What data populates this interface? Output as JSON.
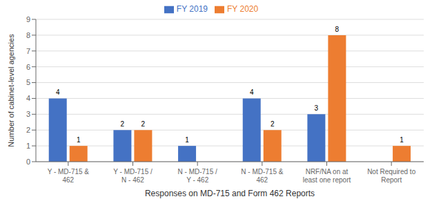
{
  "chart_data": {
    "type": "bar",
    "categories": [
      "Y - MD-715 &\n462",
      "Y - MD-715 /\nN - 462",
      "N - MD-715 /\nY - 462",
      "N - MD-715 &\n462",
      "NRF/NA on at\nleast one report",
      "Not Required to\nReport"
    ],
    "series": [
      {
        "name": "FY 2019",
        "color": "#4472C4",
        "values": [
          4,
          2,
          1,
          4,
          3,
          0
        ]
      },
      {
        "name": "FY 2020",
        "color": "#ED7D31",
        "values": [
          1,
          2,
          0,
          2,
          8,
          1
        ]
      }
    ],
    "xlabel": "Responses on MD-715 and Form 462 Reports",
    "ylabel": "Number of cabinet-level agencies",
    "ylim": [
      0,
      9
    ],
    "yticks": [
      0,
      1,
      2,
      3,
      4,
      5,
      6,
      7,
      8,
      9
    ],
    "grid": true,
    "legend": "top",
    "data_labels": true
  }
}
